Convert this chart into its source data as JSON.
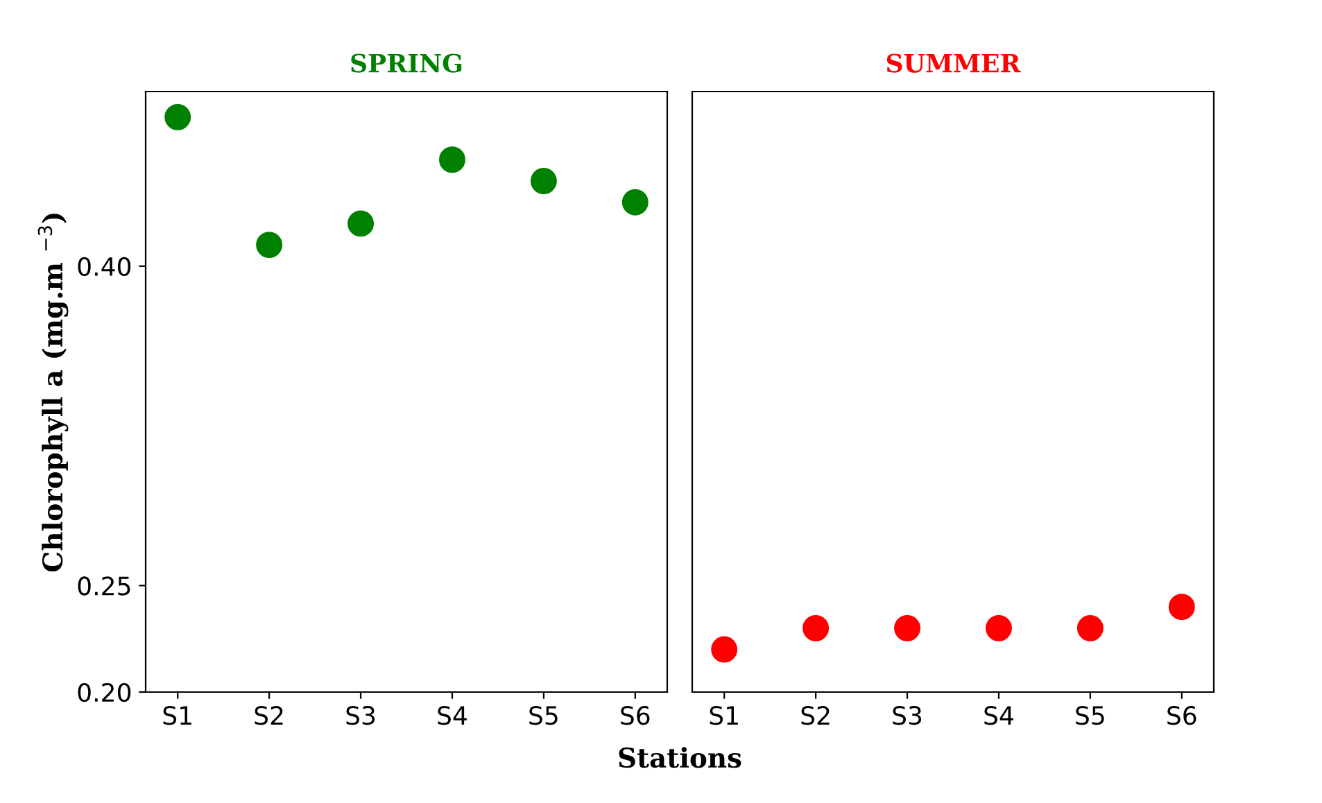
{
  "chart_data": [
    {
      "type": "scatter",
      "title": "SPRING",
      "xlabel": "Stations",
      "ylabel": "Chlorophyll a (mg.m $^{−3}$)",
      "categories": [
        "S1",
        "S2",
        "S3",
        "S4",
        "S5",
        "S6"
      ],
      "marker": "circle",
      "series": [
        {
          "color": "#008000",
          "values": [
            0.47,
            0.41,
            0.42,
            0.45,
            0.44,
            0.43
          ]
        }
      ],
      "ylim": [
        0.2,
        0.482
      ],
      "yticks": [
        {
          "value": 0.2,
          "label": "0.20"
        },
        {
          "value": 0.25,
          "label": "0.25"
        },
        {
          "value": 0.4,
          "label": "0.40"
        }
      ]
    },
    {
      "type": "scatter",
      "title": "SUMMER",
      "categories": [
        "S1",
        "S2",
        "S3",
        "S4",
        "S5",
        "S6"
      ],
      "marker": "circle",
      "tick_labels": "x",
      "series": [
        {
          "color": "#ff0000",
          "values": [
            0.22,
            0.23,
            0.23,
            0.23,
            0.23,
            0.24
          ]
        }
      ],
      "ylim": [
        0.2,
        0.482
      ]
    }
  ]
}
